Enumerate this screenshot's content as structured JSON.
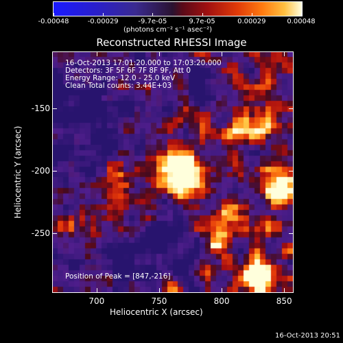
{
  "colorbar": {
    "ticks": [
      "-0.00048",
      "-0.00029",
      "-9.7e-05",
      "9.7e-05",
      "0.00029",
      "0.00048"
    ],
    "unit": "(photons cm⁻² s⁻¹ asec⁻²)"
  },
  "chart_data": {
    "type": "heatmap",
    "title": "Reconstructed RHESSI Image",
    "xlabel": "Heliocentric X (arcsec)",
    "ylabel": "Heliocentric Y (arcsec)",
    "xlim": [
      665,
      857
    ],
    "ylim": [
      -297,
      -105
    ],
    "x_ticks": [
      "700",
      "750",
      "800",
      "850"
    ],
    "y_ticks": [
      "-150",
      "-200",
      "-250"
    ],
    "colorbar_range": [
      -0.00048,
      0.00048
    ],
    "peak_position": [
      847,
      -216
    ],
    "colors": {
      "low": "#1a1aff",
      "zero": "#2a1230",
      "mid": "#e03a08",
      "high": "#ffffe0"
    }
  },
  "annotations": {
    "time": "16-Oct-2013 17:01:20.000 to 17:03:20.000",
    "detectors": "Detectors: 3F 5F 6F 7F 8F 9F, Att 0",
    "energy": "Energy Range: 12.0 - 25.0 keV",
    "clean": "Clean     Total counts: 3.44E+03",
    "peak": "Position of Peak = [847,-216]"
  },
  "footer": {
    "timestamp": "16-Oct-2013 20:51"
  }
}
